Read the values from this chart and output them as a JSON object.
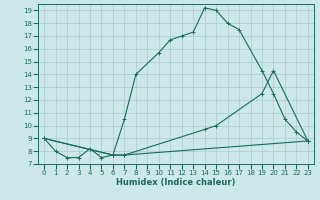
{
  "xlabel": "Humidex (Indice chaleur)",
  "bg_color": "#cce8e8",
  "grid_color": "#aacccc",
  "line_color": "#1a6b5a",
  "xlim": [
    -0.5,
    23.5
  ],
  "ylim": [
    7,
    19.5
  ],
  "yticks": [
    7,
    8,
    9,
    10,
    11,
    12,
    13,
    14,
    15,
    16,
    17,
    18,
    19
  ],
  "xticks": [
    0,
    1,
    2,
    3,
    4,
    5,
    6,
    7,
    8,
    9,
    10,
    11,
    12,
    13,
    14,
    15,
    16,
    17,
    18,
    19,
    20,
    21,
    22,
    23
  ],
  "line1_x": [
    0,
    1,
    2,
    3,
    4,
    5,
    6,
    7,
    8,
    10,
    11,
    12,
    13,
    14,
    15,
    16,
    17,
    19,
    20,
    21,
    22,
    23
  ],
  "line1_y": [
    9.0,
    8.0,
    7.5,
    7.5,
    8.2,
    7.5,
    7.7,
    10.5,
    14.0,
    15.7,
    16.7,
    17.0,
    17.3,
    19.2,
    19.0,
    18.0,
    17.5,
    14.3,
    12.5,
    10.5,
    9.5,
    8.8
  ],
  "line2_x": [
    0,
    6,
    7,
    14,
    15,
    19,
    20,
    23
  ],
  "line2_y": [
    9.0,
    7.7,
    7.7,
    9.7,
    10.0,
    12.5,
    14.3,
    8.8
  ],
  "line3_x": [
    0,
    6,
    7,
    23
  ],
  "line3_y": [
    9.0,
    7.7,
    7.7,
    8.8
  ]
}
